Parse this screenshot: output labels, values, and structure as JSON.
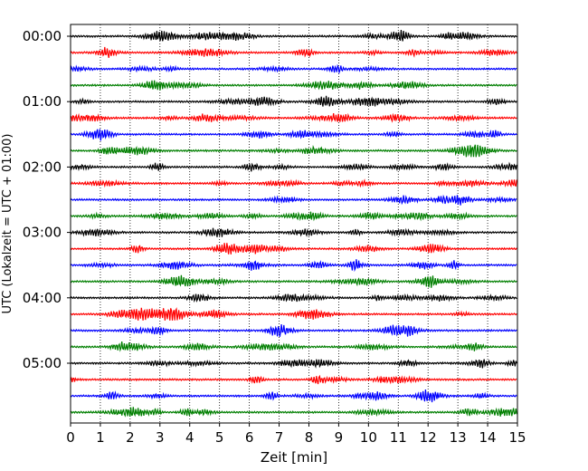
{
  "chart_data": {
    "type": "line",
    "title": "",
    "xlabel": "Zeit  [min]",
    "ylabel": "UTC (Lokalzeit = UTC + 01:00)",
    "xlim": [
      0,
      15
    ],
    "x_ticks": [
      0,
      1,
      2,
      3,
      4,
      5,
      6,
      7,
      8,
      9,
      10,
      11,
      12,
      13,
      14,
      15
    ],
    "x_tick_labels": [
      "0",
      "1",
      "2",
      "3",
      "4",
      "5",
      "6",
      "7",
      "8",
      "9",
      "10",
      "11",
      "12",
      "13",
      "14",
      "15"
    ],
    "y_tick_labels": [
      "00:00",
      "01:00",
      "02:00",
      "03:00",
      "04:00",
      "05:00"
    ],
    "trace_interval_min": 15,
    "trace_count": 24,
    "trace_colors": [
      "#000000",
      "#ff0000",
      "#0000ff",
      "#007f00"
    ],
    "grid_x": true,
    "grid_style": "dotted"
  }
}
